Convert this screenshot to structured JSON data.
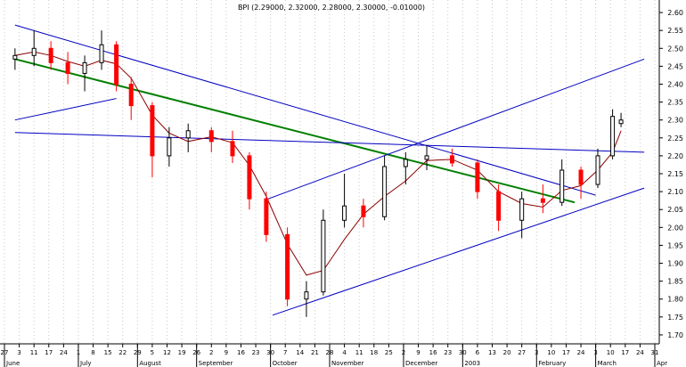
{
  "title": "BPI (2.29000, 2.32000, 2.28000, 2.30000, -0.01000)",
  "chart_data": {
    "type": "candlestick",
    "title": "BPI (2.29000, 2.32000, 2.28000, 2.30000, -0.01000)",
    "ylim": [
      1.675,
      2.635
    ],
    "y_ticks": [
      "2.60",
      "2.55",
      "2.50",
      "2.45",
      "2.40",
      "2.35",
      "2.30",
      "2.25",
      "2.20",
      "2.15",
      "2.10",
      "2.05",
      "2.00",
      "1.95",
      "1.90",
      "1.85",
      "1.80",
      "1.75",
      "1.70"
    ],
    "x_day_ticks": [
      "27",
      "3",
      "11",
      "17",
      "24",
      "1",
      "8",
      "15",
      "22",
      "29",
      "5",
      "12",
      "19",
      "26",
      "2",
      "9",
      "16",
      "23",
      "30",
      "7",
      "14",
      "21",
      "28",
      "4",
      "11",
      "18",
      "25",
      "2",
      "9",
      "16",
      "23",
      "30",
      "6",
      "13",
      "20",
      "27",
      "3",
      "10",
      "17",
      "24",
      "3",
      "10",
      "17",
      "24",
      "31"
    ],
    "x_month_labels": [
      "June",
      "July",
      "August",
      "September",
      "October",
      "November",
      "December",
      "2003",
      "February",
      "March",
      "Apr"
    ],
    "grid": true,
    "trend_lines": [
      {
        "color": "#008000",
        "from": [
          "2002-06-01",
          2.47
        ],
        "to": [
          "2003-02-21",
          2.07
        ]
      },
      {
        "color": "#0000c0",
        "from": [
          "2002-06-01",
          2.265
        ],
        "to": [
          "2003-03-26",
          2.21
        ],
        "note": "horizontal support"
      },
      {
        "color": "#0000c0",
        "from": [
          "2002-06-01",
          2.565
        ],
        "to": [
          "2003-03-03",
          2.09
        ]
      },
      {
        "color": "#0000c0",
        "from": [
          "2002-06-01",
          2.3
        ],
        "to": [
          "2002-07-19",
          2.36
        ]
      },
      {
        "color": "#0000c0",
        "from": [
          "2002-10-01",
          1.755
        ],
        "to": [
          "2003-03-26",
          2.11
        ]
      },
      {
        "color": "#0000c0",
        "from": [
          "2002-09-29",
          2.08
        ],
        "to": [
          "2003-03-26",
          2.47
        ]
      }
    ],
    "series": [
      {
        "date": "2002-06-01",
        "open": 2.47,
        "high": 2.5,
        "low": 2.44,
        "close": 2.48
      },
      {
        "date": "2002-06-10",
        "open": 2.48,
        "high": 2.55,
        "low": 2.45,
        "close": 2.5
      },
      {
        "date": "2002-06-18",
        "open": 2.5,
        "high": 2.52,
        "low": 2.44,
        "close": 2.46
      },
      {
        "date": "2002-06-26",
        "open": 2.46,
        "high": 2.49,
        "low": 2.4,
        "close": 2.43
      },
      {
        "date": "2002-07-04",
        "open": 2.43,
        "high": 2.48,
        "low": 2.38,
        "close": 2.46
      },
      {
        "date": "2002-07-12",
        "open": 2.46,
        "high": 2.55,
        "low": 2.44,
        "close": 2.51
      },
      {
        "date": "2002-07-19",
        "open": 2.51,
        "high": 2.52,
        "low": 2.38,
        "close": 2.4
      },
      {
        "date": "2002-07-26",
        "open": 2.4,
        "high": 2.42,
        "low": 2.3,
        "close": 2.34
      },
      {
        "date": "2002-08-05",
        "open": 2.34,
        "high": 2.35,
        "low": 2.14,
        "close": 2.2
      },
      {
        "date": "2002-08-13",
        "open": 2.2,
        "high": 2.28,
        "low": 2.17,
        "close": 2.25
      },
      {
        "date": "2002-08-22",
        "open": 2.25,
        "high": 2.29,
        "low": 2.21,
        "close": 2.27
      },
      {
        "date": "2002-09-02",
        "open": 2.27,
        "high": 2.28,
        "low": 2.21,
        "close": 2.24
      },
      {
        "date": "2002-09-12",
        "open": 2.24,
        "high": 2.27,
        "low": 2.18,
        "close": 2.2
      },
      {
        "date": "2002-09-20",
        "open": 2.2,
        "high": 2.21,
        "low": 2.05,
        "close": 2.08
      },
      {
        "date": "2002-09-28",
        "open": 2.08,
        "high": 2.1,
        "low": 1.96,
        "close": 1.98
      },
      {
        "date": "2002-10-08",
        "open": 1.98,
        "high": 2.0,
        "low": 1.78,
        "close": 1.8
      },
      {
        "date": "2002-10-17",
        "open": 1.8,
        "high": 1.85,
        "low": 1.75,
        "close": 1.82
      },
      {
        "date": "2002-10-25",
        "open": 1.82,
        "high": 2.05,
        "low": 1.81,
        "close": 2.02
      },
      {
        "date": "2002-11-04",
        "open": 2.02,
        "high": 2.15,
        "low": 2.0,
        "close": 2.06
      },
      {
        "date": "2002-11-13",
        "open": 2.06,
        "high": 2.08,
        "low": 2.0,
        "close": 2.03
      },
      {
        "date": "2002-11-23",
        "open": 2.03,
        "high": 2.2,
        "low": 2.02,
        "close": 2.17
      },
      {
        "date": "2002-12-03",
        "open": 2.17,
        "high": 2.21,
        "low": 2.12,
        "close": 2.19
      },
      {
        "date": "2002-12-13",
        "open": 2.19,
        "high": 2.23,
        "low": 2.16,
        "close": 2.2
      },
      {
        "date": "2002-12-25",
        "open": 2.2,
        "high": 2.22,
        "low": 2.17,
        "close": 2.18
      },
      {
        "date": "2003-01-06",
        "open": 2.18,
        "high": 2.19,
        "low": 2.08,
        "close": 2.1
      },
      {
        "date": "2003-01-16",
        "open": 2.1,
        "high": 2.12,
        "low": 1.99,
        "close": 2.02
      },
      {
        "date": "2003-01-27",
        "open": 2.02,
        "high": 2.1,
        "low": 1.97,
        "close": 2.08
      },
      {
        "date": "2003-02-06",
        "open": 2.08,
        "high": 2.12,
        "low": 2.04,
        "close": 2.07
      },
      {
        "date": "2003-02-15",
        "open": 2.07,
        "high": 2.19,
        "low": 2.06,
        "close": 2.16
      },
      {
        "date": "2003-02-24",
        "open": 2.16,
        "high": 2.17,
        "low": 2.08,
        "close": 2.12
      },
      {
        "date": "2003-03-04",
        "open": 2.12,
        "high": 2.22,
        "low": 2.11,
        "close": 2.2
      },
      {
        "date": "2003-03-11",
        "open": 2.2,
        "high": 2.33,
        "low": 2.19,
        "close": 2.31
      },
      {
        "date": "2003-03-15",
        "open": 2.29,
        "high": 2.32,
        "low": 2.28,
        "close": 2.3
      }
    ]
  }
}
